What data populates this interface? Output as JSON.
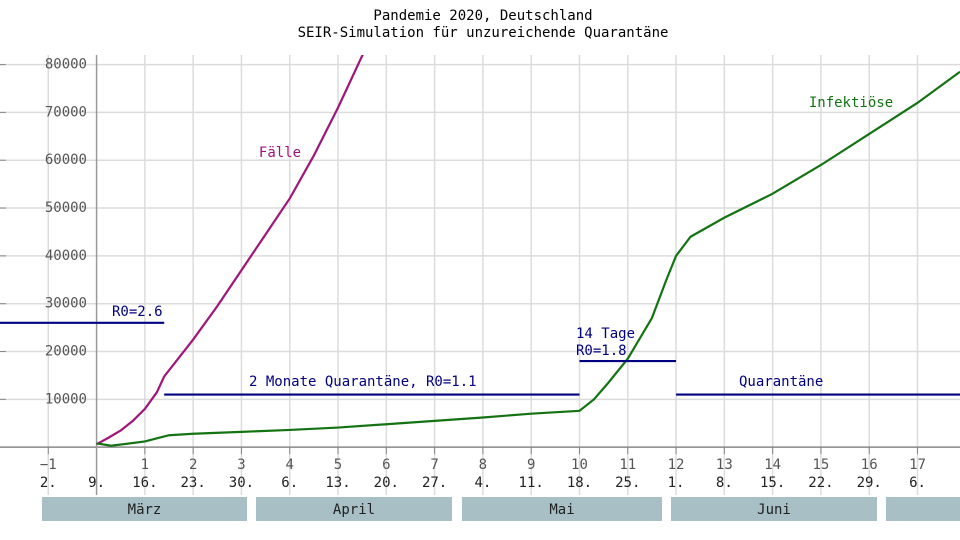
{
  "chart_data": {
    "type": "line",
    "title": "Pandemie 2020, Deutschland",
    "subtitle": "SEIR-Simulation für unzureichende Quarantäne",
    "xlim": [
      -2,
      17.88
    ],
    "ylim": [
      -10000,
      82000
    ],
    "xticks": [
      {
        "value": -1,
        "label": "−1"
      },
      1,
      2,
      3,
      4,
      5,
      6,
      7,
      8,
      9,
      10,
      11,
      12,
      13,
      14,
      15,
      16,
      17
    ],
    "yticks": [
      10000,
      20000,
      30000,
      40000,
      50000,
      60000,
      70000,
      80000
    ],
    "date_labels": [
      {
        "value": -1,
        "label": "2."
      },
      {
        "value": 0,
        "label": "9."
      },
      {
        "value": 1,
        "label": "16."
      },
      {
        "value": 2,
        "label": "23."
      },
      {
        "value": 3,
        "label": "30."
      },
      {
        "value": 4,
        "label": "6."
      },
      {
        "value": 5,
        "label": "13."
      },
      {
        "value": 6,
        "label": "20."
      },
      {
        "value": 7,
        "label": "27."
      },
      {
        "value": 8,
        "label": "4."
      },
      {
        "value": 9,
        "label": "11."
      },
      {
        "value": 10,
        "label": "18."
      },
      {
        "value": 11,
        "label": "25."
      },
      {
        "value": 12,
        "label": "1."
      },
      {
        "value": 13,
        "label": "8."
      },
      {
        "value": 14,
        "label": "15."
      },
      {
        "value": 15,
        "label": "22."
      },
      {
        "value": 16,
        "label": "29."
      },
      {
        "value": 17,
        "label": "6."
      }
    ],
    "months": [
      "März",
      "April",
      "Mai",
      "Juni"
    ],
    "grid": true,
    "series": [
      {
        "name": "Fälle",
        "color": "#a0157a",
        "x": [
          0,
          0.25,
          0.5,
          0.75,
          1,
          1.25,
          1.4,
          2,
          2.5,
          3,
          3.5,
          4,
          4.5,
          5,
          5.6
        ],
        "values": [
          600,
          2000,
          3500,
          5500,
          8000,
          11500,
          14800,
          22500,
          29500,
          37000,
          44500,
          52000,
          61000,
          71000,
          84000
        ]
      },
      {
        "name": "Infektiöse",
        "color": "#137313",
        "x": [
          0,
          0.3,
          1,
          1.5,
          2,
          3,
          4,
          5,
          6,
          7,
          8,
          9,
          10,
          10.3,
          10.6,
          11,
          11.5,
          11.8,
          12,
          12.3,
          13,
          14,
          15,
          16,
          17,
          17.88
        ],
        "values": [
          800,
          300,
          1200,
          2500,
          2800,
          3200,
          3600,
          4100,
          4800,
          5500,
          6200,
          7000,
          7600,
          10000,
          13500,
          18500,
          27000,
          35000,
          40000,
          44000,
          48000,
          53000,
          59000,
          65500,
          72000,
          78500
        ]
      }
    ],
    "segment_color": "#000080",
    "segments": [
      {
        "x": [
          -2,
          1.4
        ],
        "values": [
          26000,
          26000
        ],
        "label": [
          "R0=2.6"
        ]
      },
      {
        "x": [
          1.4,
          10
        ],
        "values": [
          11000,
          11000
        ],
        "label": [
          "2 Monate Quarantäne, R0=1.1"
        ]
      },
      {
        "x": [
          10,
          12
        ],
        "values": [
          18000,
          18000
        ],
        "label": [
          "14 Tage",
          "R0=1.8"
        ]
      },
      {
        "x": [
          12,
          17.88
        ],
        "values": [
          11000,
          11000
        ],
        "label": [
          "Quarantäne"
        ]
      }
    ]
  }
}
